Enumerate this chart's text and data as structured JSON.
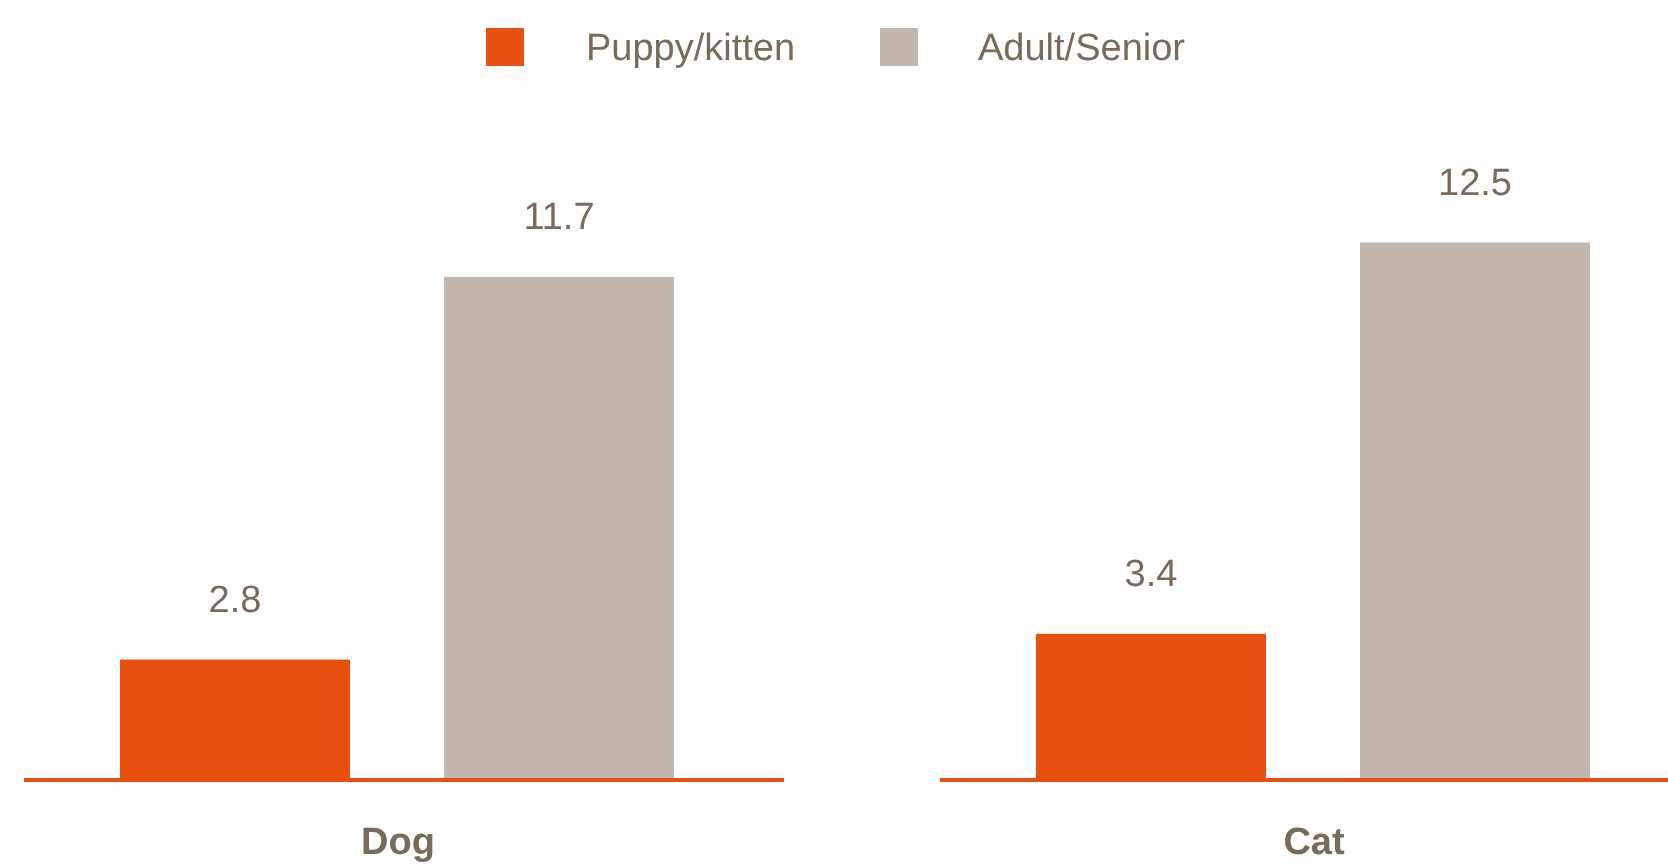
{
  "chart_data": {
    "type": "bar",
    "categories": [
      "Dog",
      "Cat"
    ],
    "series": [
      {
        "name": "Puppy/kitten",
        "color": "#e8500f",
        "values": [
          2.8,
          3.4
        ]
      },
      {
        "name": "Adult/Senior",
        "color": "#c2b8af",
        "values": [
          11.7,
          12.5
        ]
      }
    ],
    "relative": false,
    "data_labels": true,
    "legend": "top"
  }
}
